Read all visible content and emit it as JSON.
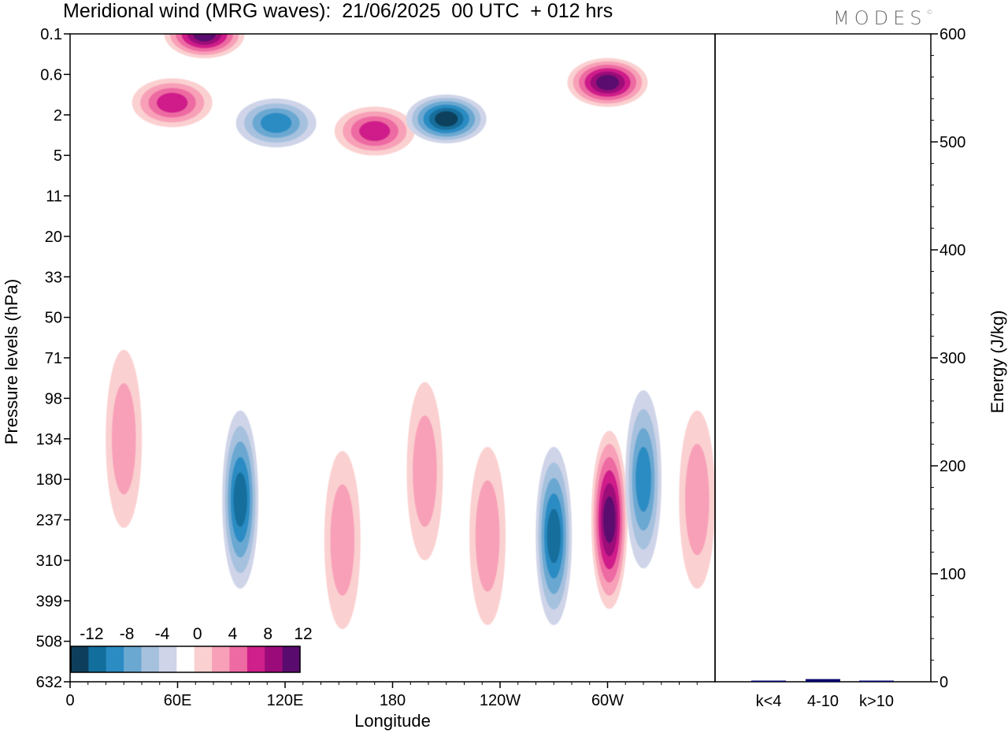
{
  "header": {
    "title": "Meridional wind (MRG waves):  21/06/2025  00 UTC  + 012 hrs",
    "logo": "MODES"
  },
  "chart_data": [
    {
      "type": "heatmap",
      "xlabel": "Longitude",
      "ylabel": "Pressure levels (hPa)",
      "x_ticks": [
        "0",
        "60E",
        "120E",
        "180",
        "120W",
        "60W"
      ],
      "x_tick_values": [
        0,
        60,
        120,
        180,
        240,
        300
      ],
      "xlim": [
        0,
        360
      ],
      "y_ticks": [
        "0.1",
        "0.6",
        "2",
        "5",
        "11",
        "20",
        "33",
        "50",
        "71",
        "98",
        "134",
        "180",
        "237",
        "310",
        "399",
        "508",
        "632"
      ],
      "legend": {
        "labels": [
          "-12",
          "-8",
          "-4",
          "0",
          "4",
          "8",
          "12"
        ],
        "colors": [
          "#0d3f5c",
          "#126e9c",
          "#2b8cc3",
          "#6aa8d2",
          "#a6c1de",
          "#cfd4e8",
          "#ffffff",
          "#fbd0d0",
          "#f7a0b8",
          "#ee6aa2",
          "#cf1f8a",
          "#9c0b7a",
          "#5a0b6e"
        ],
        "placement": "bottom-left"
      },
      "features": [
        {
          "lon": 75,
          "lev": 0,
          "value": 14
        },
        {
          "lon": 57,
          "lev": 1.7,
          "value": 11
        },
        {
          "lon": 300,
          "lev": 1.2,
          "value": 15
        },
        {
          "lon": 170,
          "lev": 2.4,
          "value": 10
        },
        {
          "lon": 210,
          "lev": 2.1,
          "value": -14
        },
        {
          "lon": 115,
          "lev": 2.2,
          "value": -10
        },
        {
          "lon": 270,
          "lev": 12.4,
          "value": -13
        },
        {
          "lon": 301,
          "lev": 12.0,
          "value": 15
        },
        {
          "lon": 95,
          "lev": 11.5,
          "value": -12
        },
        {
          "lon": 320,
          "lev": 11.0,
          "value": -10
        },
        {
          "lon": 30,
          "lev": 10.0,
          "value": 7
        },
        {
          "lon": 233,
          "lev": 12.4,
          "value": 7
        },
        {
          "lon": 198,
          "lev": 10.8,
          "value": 6
        },
        {
          "lon": 152,
          "lev": 12.5,
          "value": 6
        },
        {
          "lon": 350,
          "lev": 11.5,
          "value": 6
        }
      ]
    },
    {
      "type": "bar",
      "categories": [
        "k<4",
        "4-10",
        "k>10"
      ],
      "values": [
        0.3,
        2.5,
        0.2
      ],
      "ylabel": "Energy (J/kg)",
      "ylim": [
        0,
        600
      ],
      "y_ticks": [
        "0",
        "100",
        "200",
        "300",
        "400",
        "500",
        "600"
      ],
      "colors": [
        "#0a0a6e",
        "#0a0a6e",
        "#0a0a6e"
      ]
    }
  ]
}
